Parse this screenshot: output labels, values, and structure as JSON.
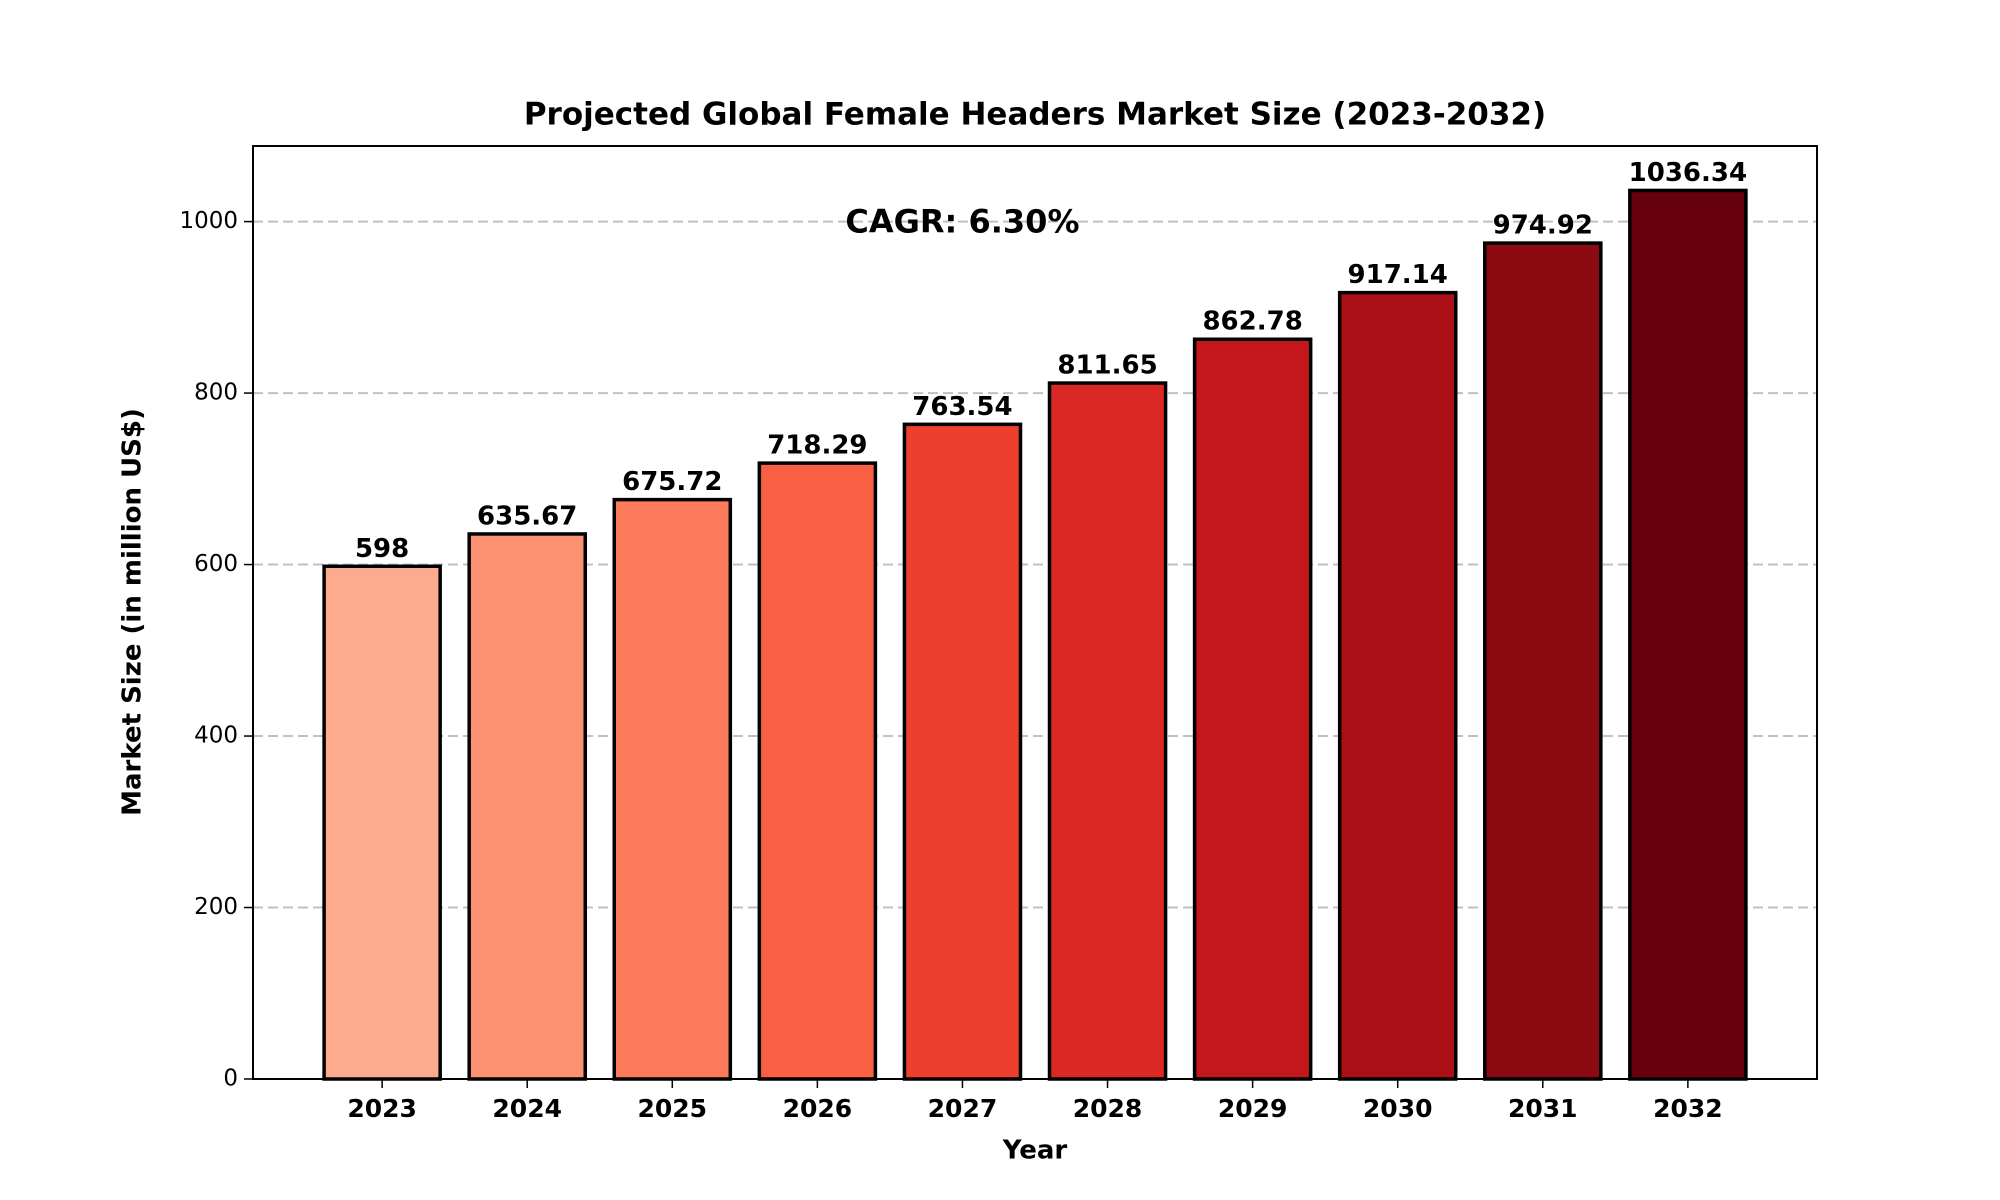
{
  "chart_data": {
    "type": "bar",
    "title": "Projected Global Female Headers Market Size (2023-2032)",
    "x_label": "Year",
    "y_label": "Market Size (in million US$)",
    "annotation": "CAGR: 6.30%",
    "categories": [
      "2023",
      "2024",
      "2025",
      "2026",
      "2027",
      "2028",
      "2029",
      "2030",
      "2031",
      "2032"
    ],
    "values": [
      598,
      635.67,
      675.72,
      718.29,
      763.54,
      811.65,
      862.78,
      917.14,
      974.92,
      1036.34
    ],
    "colors": [
      "#fcab8f",
      "#fc9272",
      "#fb7b5b",
      "#f85f43",
      "#ee3f2e",
      "#db2824",
      "#c4171c",
      "#ab1016",
      "#8c0a12",
      "#67000d"
    ],
    "ylim": [
      0,
      1088.16
    ],
    "yticks": [
      0,
      200,
      400,
      600,
      800,
      1000
    ],
    "grid": true
  }
}
